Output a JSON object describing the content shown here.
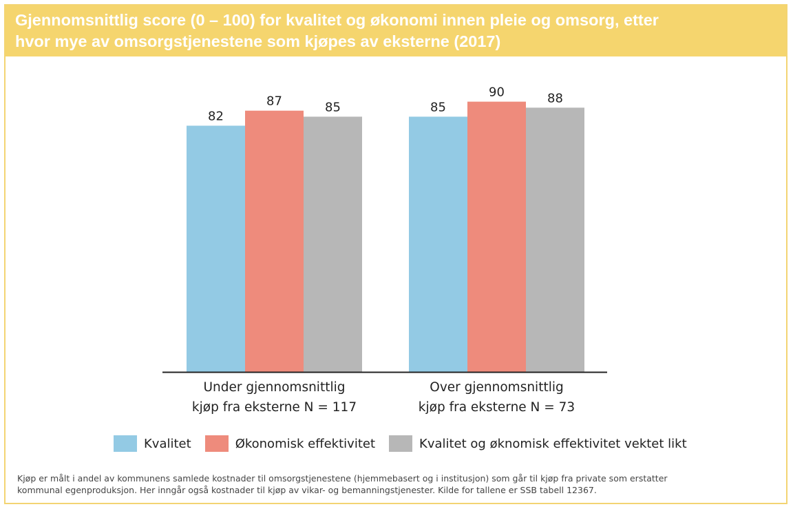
{
  "title": "Gjennomsnittlig score (0 – 100) for kvalitet og økonomi innen pleie og omsorg, etter\nhvor mye av omsorgstjenestene som kjøpes av eksterne (2017)",
  "footnote": [
    "Kjøp er målt i andel av kommunens samlede kostnader til omsorgstjenestene (hjemmebasert og i institusjon) som går til kjøp fra private som erstatter",
    "kommunal egenproduksjon. Her inngår også kostnader til kjøp av vikar- og bemanningstjenester. Kilde for tallene er SSB tabell 12367."
  ],
  "colors": {
    "title_bg": "#f5d56e",
    "kvalitet": "#93cae4",
    "okonomisk": "#ee8b7c",
    "vektet": "#b7b7b7"
  },
  "chart_data": {
    "type": "bar",
    "title": "Gjennomsnittlig score (0 – 100) for kvalitet og økonomi innen pleie og omsorg, etter hvor mye av omsorgstjenestene som kjøpes av eksterne (2017)",
    "categories": [
      [
        "Under gjennomsnittlig",
        "kjøp fra eksterne N = 117"
      ],
      [
        "Over gjennomsnittlig",
        "kjøp fra eksterne N = 73"
      ]
    ],
    "series": [
      {
        "name": "Kvalitet",
        "values": [
          82,
          85
        ],
        "color": "#93cae4"
      },
      {
        "name": "Økonomisk effektivitet",
        "values": [
          87,
          90
        ],
        "color": "#ee8b7c"
      },
      {
        "name": "Kvalitet og øknomisk effektivitet vektet likt",
        "values": [
          85,
          88
        ],
        "color": "#b7b7b7"
      }
    ],
    "data_labels": true,
    "grid": false,
    "legend": "bottom"
  }
}
